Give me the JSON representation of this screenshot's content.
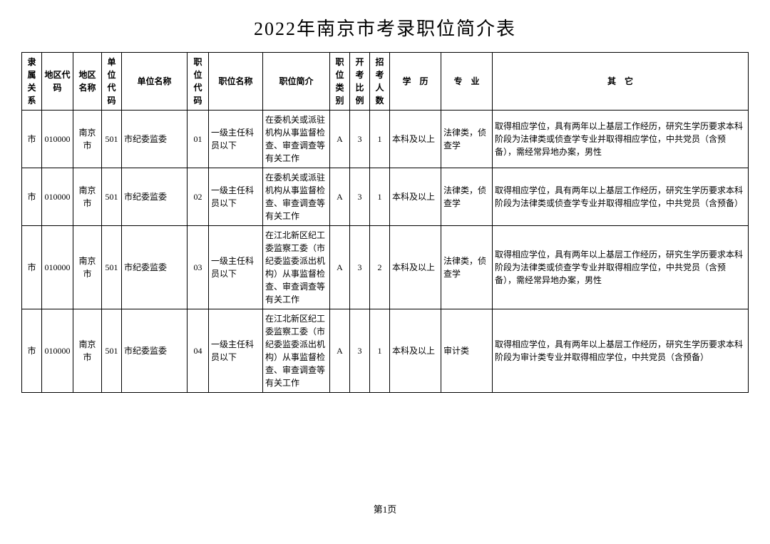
{
  "title": "2022年南京市考录职位简介表",
  "footer": "第1页",
  "columns": {
    "rel": "隶属关系",
    "acode": "地区代码",
    "aname": "地区名称",
    "ucode": "单位代码",
    "uname": "单位名称",
    "pcode": "职位代码",
    "pname": "职位名称",
    "pdesc": "职位简介",
    "ptype": "职位类别",
    "ratio": "开考比例",
    "count": "招考人数",
    "edu": "学　历",
    "major": "专　业",
    "other": "其　它"
  },
  "rows": [
    {
      "rel": "市",
      "acode": "010000",
      "aname": "南京市",
      "ucode": "501",
      "uname": "市纪委监委",
      "pcode": "01",
      "pname": "一级主任科员以下",
      "pdesc": "在委机关或派驻机构从事监督检查、审查调查等有关工作",
      "ptype": "A",
      "ratio": "3",
      "count": "1",
      "edu": "本科及以上",
      "major": "法律类，侦查学",
      "other": "取得相应学位，具有两年以上基层工作经历，研究生学历要求本科阶段为法律类或侦查学专业并取得相应学位，中共党员（含预备），需经常异地办案，男性"
    },
    {
      "rel": "市",
      "acode": "010000",
      "aname": "南京市",
      "ucode": "501",
      "uname": "市纪委监委",
      "pcode": "02",
      "pname": "一级主任科员以下",
      "pdesc": "在委机关或派驻机构从事监督检查、审查调查等有关工作",
      "ptype": "A",
      "ratio": "3",
      "count": "1",
      "edu": "本科及以上",
      "major": "法律类，侦查学",
      "other": "取得相应学位，具有两年以上基层工作经历，研究生学历要求本科阶段为法律类或侦查学专业并取得相应学位，中共党员（含预备）"
    },
    {
      "rel": "市",
      "acode": "010000",
      "aname": "南京市",
      "ucode": "501",
      "uname": "市纪委监委",
      "pcode": "03",
      "pname": "一级主任科员以下",
      "pdesc": "在江北新区纪工委监察工委（市纪委监委派出机构）从事监督检查、审查调查等有关工作",
      "ptype": "A",
      "ratio": "3",
      "count": "2",
      "edu": "本科及以上",
      "major": "法律类，侦查学",
      "other": "取得相应学位，具有两年以上基层工作经历，研究生学历要求本科阶段为法律类或侦查学专业并取得相应学位，中共党员（含预备），需经常异地办案，男性"
    },
    {
      "rel": "市",
      "acode": "010000",
      "aname": "南京市",
      "ucode": "501",
      "uname": "市纪委监委",
      "pcode": "04",
      "pname": "一级主任科员以下",
      "pdesc": "在江北新区纪工委监察工委（市纪委监委派出机构）从事监督检查、审查调查等有关工作",
      "ptype": "A",
      "ratio": "3",
      "count": "1",
      "edu": "本科及以上",
      "major": "审计类",
      "other": "取得相应学位，具有两年以上基层工作经历，研究生学历要求本科阶段为审计类专业并取得相应学位，中共党员（含预备）"
    }
  ]
}
